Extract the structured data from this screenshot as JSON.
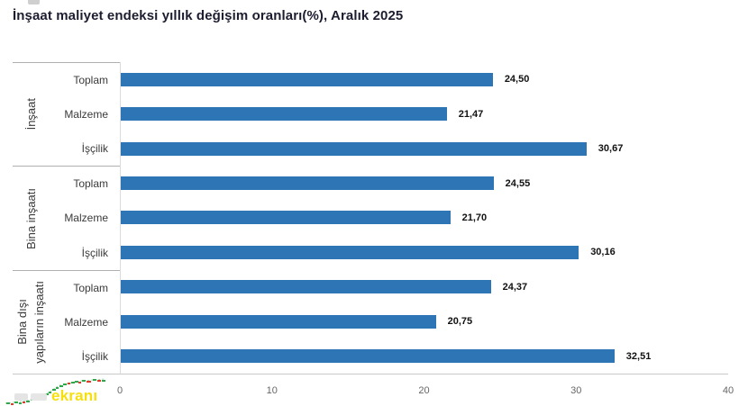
{
  "title": "İnşaat maliyet endeksi yıllık değişim oranları(%), Aralık 2025",
  "chart_data": {
    "type": "bar",
    "orientation": "horizontal",
    "title": "İnşaat maliyet endeksi yıllık değişim oranları(%), Aralık 2025",
    "xlabel": "",
    "ylabel": "",
    "xlim": [
      0,
      40
    ],
    "xticks": [
      "0",
      "10",
      "20",
      "30",
      "40"
    ],
    "grid": false,
    "legend": false,
    "bar_color": "#2E75B6",
    "groups": [
      {
        "label": "İnşaat",
        "lines": [
          "İnşaat"
        ],
        "bars": [
          {
            "label": "Toplam",
            "value": 24.5,
            "display": "24,50"
          },
          {
            "label": "Malzeme",
            "value": 21.47,
            "display": "21,47"
          },
          {
            "label": "İşçilik",
            "value": 30.67,
            "display": "30,67"
          }
        ]
      },
      {
        "label": "Bina inşaatı",
        "lines": [
          "Bina inşaatı"
        ],
        "bars": [
          {
            "label": "Toplam",
            "value": 24.55,
            "display": "24,55"
          },
          {
            "label": "Malzeme",
            "value": 21.7,
            "display": "21,70"
          },
          {
            "label": "İşçilik",
            "value": 30.16,
            "display": "30,16"
          }
        ]
      },
      {
        "label": "Bina dışı yapıların inşaatı",
        "lines": [
          "Bina dışı",
          "yapıların inşaatı"
        ],
        "bars": [
          {
            "label": "Toplam",
            "value": 24.37,
            "display": "24,37"
          },
          {
            "label": "Malzeme",
            "value": 20.75,
            "display": "20,75"
          },
          {
            "label": "İşçilik",
            "value": 32.51,
            "display": "32,51"
          }
        ]
      }
    ]
  },
  "watermark": {
    "text": "ekranı"
  },
  "colors": {
    "bar": "#2E75B6",
    "watermark_text": "#F5DF0C",
    "watermark_green": "#2FA84A",
    "watermark_red": "#E0392E"
  }
}
